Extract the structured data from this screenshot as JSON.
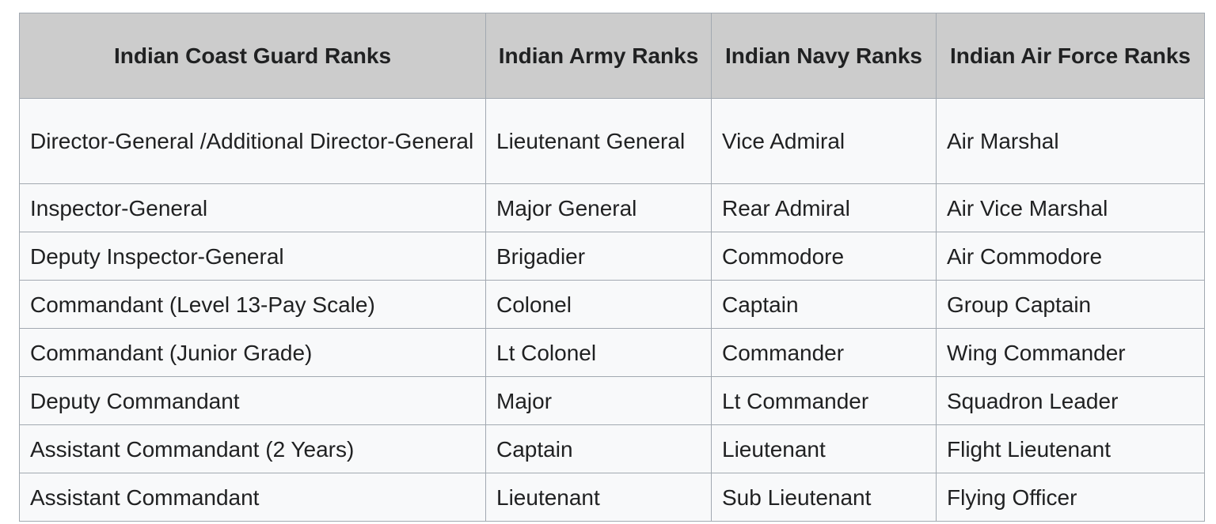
{
  "table": {
    "headers": [
      "Indian Coast Guard Ranks",
      "Indian Army Ranks",
      "Indian Navy Ranks",
      "Indian Air Force Ranks"
    ],
    "rows": [
      [
        "Director-General /Additional Director-General",
        "Lieutenant General",
        "Vice Admiral",
        "Air Marshal"
      ],
      [
        "Inspector-General",
        "Major General",
        "Rear Admiral",
        "Air Vice Marshal"
      ],
      [
        "Deputy Inspector-General",
        "Brigadier",
        "Commodore",
        "Air Commodore"
      ],
      [
        "Commandant (Level 13-Pay Scale)",
        "Colonel",
        "Captain",
        "Group Captain"
      ],
      [
        "Commandant (Junior Grade)",
        "Lt Colonel",
        "Commander",
        "Wing Commander"
      ],
      [
        "Deputy Commandant",
        "Major",
        "Lt Commander",
        "Squadron Leader"
      ],
      [
        "Assistant Commandant (2 Years)",
        "Captain",
        "Lieutenant",
        "Flight Lieutenant"
      ],
      [
        "Assistant Commandant",
        "Lieutenant",
        "Sub Lieutenant",
        "Flying Officer"
      ]
    ]
  },
  "colors": {
    "header_bg": "#cccccc",
    "cell_bg": "#f8f9fa",
    "border": "#a2a9b1",
    "text": "#202122"
  }
}
